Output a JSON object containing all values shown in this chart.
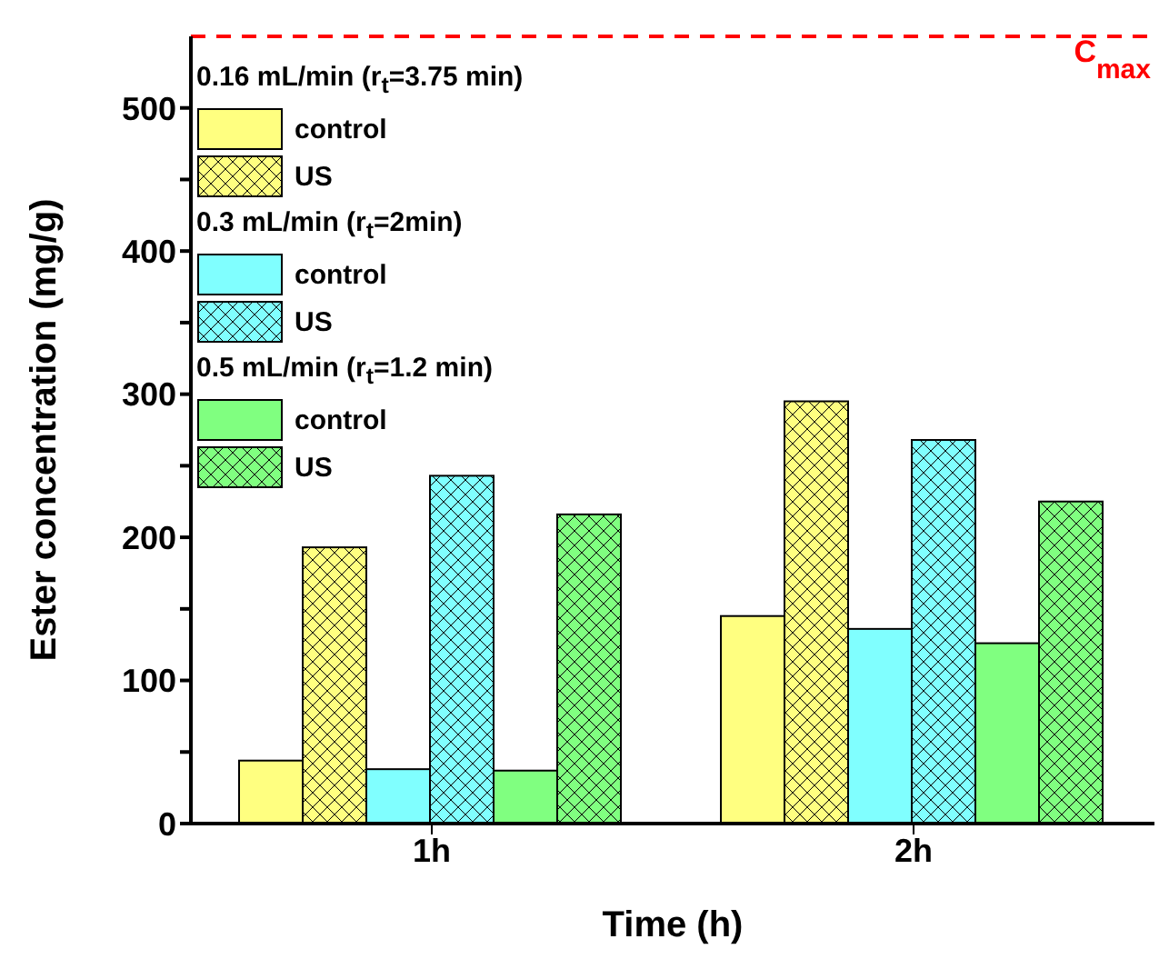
{
  "chart_data": {
    "type": "bar",
    "xlabel": "Time (h)",
    "ylabel": "Ester concentration (mg/g)",
    "categories": [
      "1h",
      "2h"
    ],
    "series": [
      {
        "name": "control",
        "color": "#ffff80",
        "values": [
          44,
          145
        ]
      },
      {
        "name": "US",
        "color": "#ffff80",
        "values": [
          193,
          295
        ]
      },
      {
        "name": "control",
        "color": "#80ffff",
        "values": [
          38,
          136
        ]
      },
      {
        "name": "US",
        "color": "#80ffff",
        "values": [
          243,
          268
        ]
      },
      {
        "name": "control",
        "color": "#80ff80",
        "values": [
          37,
          126
        ]
      },
      {
        "name": "US",
        "color": "#80ff80",
        "values": [
          216,
          225
        ]
      }
    ],
    "annotations": [
      "0.16 mL/min (r$_{t}$=3.75 min)",
      "0.3 mL/min (r$_{t}$=2min)",
      "0.5 mL/min (r$_{t}$=1.2 min)"
    ],
    "ylim": [
      0,
      550
    ],
    "yticks": [
      0,
      {
        "value": 50,
        "label": null
      },
      100,
      {
        "value": 150,
        "label": null
      },
      200,
      {
        "value": 250,
        "label": null
      },
      300,
      {
        "value": 350,
        "label": null
      },
      400,
      {
        "value": 450,
        "label": null
      },
      500
    ],
    "ref_lines": [
      {
        "axis": "y",
        "value": 550,
        "label": "C$_{max}$",
        "color": "#ff0000",
        "line_style": "dashed"
      }
    ],
    "legend": "top left",
    "grid": false
  }
}
